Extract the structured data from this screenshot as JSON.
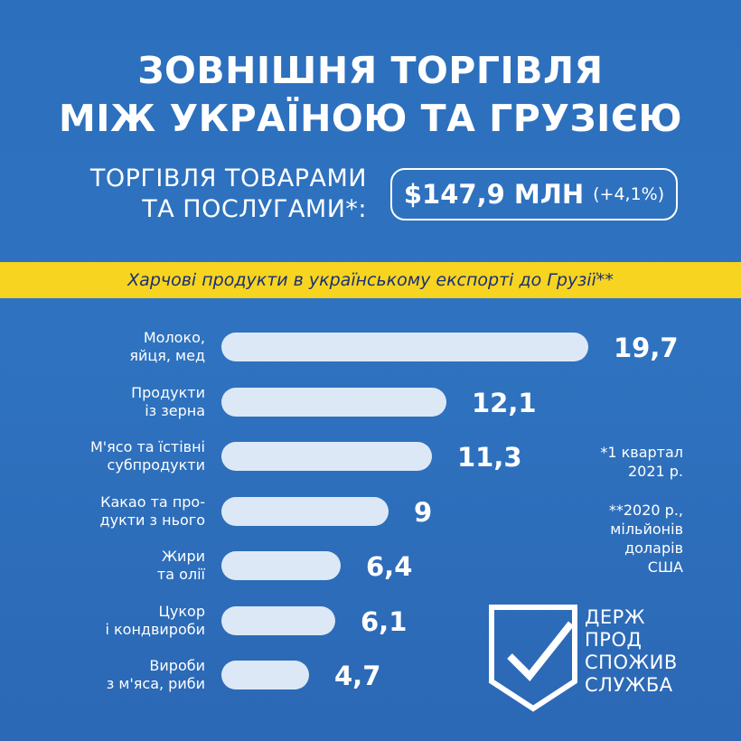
{
  "title": {
    "line1": "ЗОВНІШНЯ ТОРГІВЛЯ",
    "line2": "МІЖ УКРАЇНОЮ ТА ГРУЗІЄЮ"
  },
  "trade": {
    "label_line1": "ТОРГІВЛЯ ТОВАРАМИ",
    "label_line2": "ТА ПОСЛУГАМИ*:",
    "amount": "$147,9 МЛН",
    "change": "(+4,1%)"
  },
  "banner": "Харчові продукти в українському експорті до Грузії**",
  "chart_data": {
    "type": "bar",
    "orientation": "horizontal",
    "categories": [
      [
        "Молоко,",
        "яйця, мед"
      ],
      [
        "Продукти",
        "із зерна"
      ],
      [
        "М'ясо та їстівні",
        "субпродукти"
      ],
      [
        "Какао та про-",
        "дукти з нього"
      ],
      [
        "Жири",
        "та олії"
      ],
      [
        "Цукор",
        "і кондвироби"
      ],
      [
        "Вироби",
        "з м'яса, риби"
      ]
    ],
    "values": [
      19.7,
      12.1,
      11.3,
      9,
      6.4,
      6.1,
      4.7
    ],
    "value_labels": [
      "19,7",
      "12,1",
      "11,3",
      "9",
      "6,4",
      "6,1",
      "4,7"
    ]
  },
  "notes": {
    "note1": [
      "*1 квартал",
      "2021 р."
    ],
    "note2": [
      "**2020 р.,",
      "мільйонів",
      "доларів",
      "США"
    ]
  },
  "logo": {
    "lines": [
      "ДЕРЖ",
      "ПРОД",
      "СПОЖИВ",
      "СЛУЖБА"
    ]
  },
  "colors": {
    "background": "#2c6fbd",
    "banner": "#f7d41f",
    "banner_text": "#1a2f78",
    "bar": "#dde8f6"
  }
}
